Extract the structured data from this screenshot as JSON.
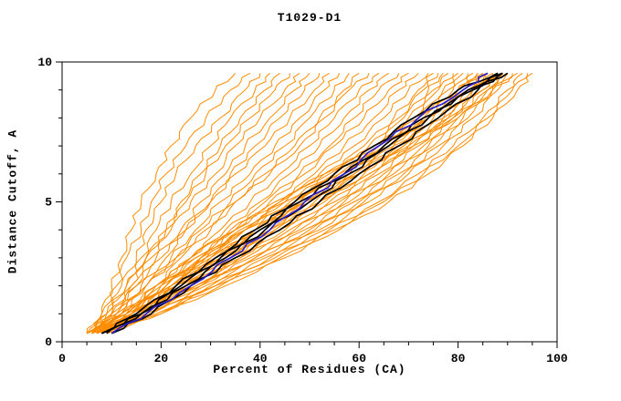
{
  "chart_data": {
    "type": "line",
    "title": "T1029-D1",
    "xlabel": "Percent of Residues (CA)",
    "ylabel": "Distance Cutoff, A",
    "xlim": [
      0,
      100
    ],
    "ylim": [
      0,
      10
    ],
    "x_major_ticks": [
      0,
      20,
      40,
      60,
      80,
      100
    ],
    "x_tick_labels": [
      "0",
      "20",
      "40",
      "60",
      "80",
      "100"
    ],
    "x_minor_step": 5,
    "y_major_ticks": [
      0,
      5,
      10
    ],
    "y_tick_labels": [
      "0",
      "5",
      "10"
    ],
    "y_minor_step": 1,
    "legend": "none",
    "grid": false,
    "colors": {
      "predictions": "#FF8C00",
      "best_models": "#000000",
      "selected_model": "#2A1FC9"
    },
    "y_samples": [
      0.3,
      1,
      2,
      3,
      4,
      5,
      6,
      7,
      8,
      9,
      9.6
    ],
    "series": {
      "orange_curves_x": [
        [
          6,
          8,
          10,
          12,
          14,
          16,
          19,
          22,
          26,
          31,
          35
        ],
        [
          5,
          8,
          11,
          13,
          16,
          18,
          21,
          25,
          29,
          34,
          38
        ],
        [
          7,
          9,
          12,
          15,
          17,
          20,
          23,
          27,
          32,
          37,
          40
        ],
        [
          6,
          9,
          13,
          16,
          19,
          22,
          26,
          30,
          34,
          39,
          42
        ],
        [
          8,
          11,
          14,
          17,
          21,
          24,
          28,
          32,
          36,
          41,
          44
        ],
        [
          5,
          9,
          13,
          17,
          21,
          25,
          29,
          33,
          38,
          43,
          46
        ],
        [
          7,
          10,
          14,
          18,
          22,
          26,
          31,
          35,
          40,
          45,
          48
        ],
        [
          6,
          10,
          15,
          19,
          24,
          28,
          33,
          37,
          42,
          47,
          50
        ],
        [
          8,
          12,
          16,
          21,
          25,
          30,
          34,
          39,
          44,
          49,
          52
        ],
        [
          5,
          10,
          15,
          20,
          25,
          30,
          35,
          41,
          46,
          51,
          54
        ],
        [
          7,
          12,
          17,
          22,
          27,
          32,
          38,
          43,
          48,
          53,
          56
        ],
        [
          6,
          11,
          17,
          23,
          28,
          34,
          39,
          45,
          50,
          55,
          58
        ],
        [
          8,
          13,
          19,
          24,
          30,
          35,
          41,
          47,
          52,
          57,
          60
        ],
        [
          5,
          11,
          17,
          23,
          29,
          35,
          42,
          48,
          53,
          58,
          62
        ],
        [
          7,
          13,
          19,
          26,
          32,
          38,
          44,
          50,
          55,
          60,
          64
        ],
        [
          6,
          12,
          19,
          26,
          33,
          40,
          46,
          52,
          57,
          62,
          66
        ],
        [
          8,
          14,
          21,
          28,
          35,
          41,
          48,
          54,
          59,
          64,
          68
        ],
        [
          5,
          12,
          20,
          27,
          35,
          42,
          49,
          55,
          61,
          66,
          70
        ],
        [
          7,
          14,
          22,
          29,
          37,
          44,
          51,
          57,
          63,
          68,
          72
        ],
        [
          6,
          13,
          21,
          29,
          37,
          45,
          52,
          59,
          65,
          70,
          74
        ],
        [
          8,
          15,
          23,
          31,
          39,
          47,
          54,
          61,
          67,
          72,
          75
        ],
        [
          5,
          13,
          22,
          30,
          39,
          47,
          55,
          62,
          68,
          73,
          76
        ],
        [
          7,
          15,
          23,
          32,
          40,
          48,
          56,
          63,
          69,
          74,
          77
        ],
        [
          6,
          14,
          23,
          32,
          41,
          49,
          57,
          64,
          70,
          75,
          78
        ],
        [
          8,
          16,
          25,
          33,
          42,
          50,
          58,
          65,
          71,
          76,
          79
        ],
        [
          5,
          14,
          24,
          33,
          42,
          51,
          59,
          66,
          72,
          77,
          80
        ],
        [
          7,
          16,
          25,
          34,
          43,
          52,
          60,
          67,
          73,
          78,
          81
        ],
        [
          6,
          15,
          25,
          35,
          44,
          53,
          61,
          68,
          74,
          79,
          82
        ],
        [
          8,
          17,
          27,
          36,
          45,
          54,
          62,
          69,
          75,
          80,
          83
        ],
        [
          5,
          15,
          26,
          36,
          46,
          55,
          63,
          70,
          76,
          81,
          84
        ],
        [
          9,
          14,
          20,
          27,
          35,
          44,
          53,
          63,
          72,
          80,
          84
        ],
        [
          7,
          16,
          27,
          37,
          47,
          56,
          64,
          71,
          77,
          82,
          85
        ],
        [
          10,
          15,
          21,
          28,
          36,
          45,
          55,
          65,
          74,
          81,
          85
        ],
        [
          6,
          16,
          27,
          38,
          48,
          57,
          65,
          72,
          78,
          83,
          86
        ],
        [
          9,
          13,
          19,
          26,
          34,
          43,
          53,
          64,
          74,
          82,
          86
        ],
        [
          8,
          18,
          28,
          39,
          49,
          58,
          66,
          73,
          79,
          84,
          87
        ],
        [
          10,
          16,
          22,
          29,
          37,
          46,
          56,
          66,
          76,
          83,
          87
        ],
        [
          6,
          17,
          28,
          39,
          50,
          59,
          67,
          74,
          80,
          85,
          88
        ],
        [
          9,
          14,
          20,
          28,
          37,
          47,
          57,
          67,
          77,
          84,
          88
        ],
        [
          8,
          18,
          29,
          40,
          51,
          60,
          68,
          75,
          81,
          86,
          89
        ],
        [
          10,
          16,
          23,
          31,
          40,
          49,
          59,
          69,
          78,
          85,
          89
        ],
        [
          7,
          18,
          30,
          41,
          52,
          61,
          69,
          76,
          82,
          87,
          90
        ],
        [
          9,
          15,
          22,
          30,
          39,
          49,
          60,
          70,
          79,
          86,
          90
        ],
        [
          8,
          19,
          31,
          42,
          53,
          62,
          70,
          77,
          83,
          88,
          91
        ],
        [
          10,
          17,
          25,
          34,
          43,
          52,
          62,
          71,
          80,
          87,
          92
        ],
        [
          7,
          19,
          31,
          43,
          54,
          64,
          72,
          79,
          85,
          90,
          93
        ],
        [
          9,
          20,
          32,
          44,
          55,
          65,
          73,
          80,
          86,
          91,
          94
        ],
        [
          8,
          20,
          33,
          45,
          56,
          66,
          74,
          81,
          87,
          92,
          95
        ]
      ],
      "black_curves_x": [
        [
          8,
          15,
          23,
          31,
          39,
          47,
          55,
          63,
          71,
          80,
          88
        ],
        [
          9,
          16,
          25,
          33,
          41,
          50,
          58,
          66,
          74,
          82,
          89
        ],
        [
          8,
          16,
          24,
          32,
          40,
          48,
          57,
          65,
          73,
          83,
          90
        ],
        [
          10,
          18,
          26,
          35,
          44,
          52,
          60,
          68,
          76,
          84,
          89
        ]
      ],
      "blue_curve_x": [
        10,
        17,
        26,
        34,
        42,
        49,
        57,
        64,
        72,
        81,
        86
      ]
    }
  }
}
